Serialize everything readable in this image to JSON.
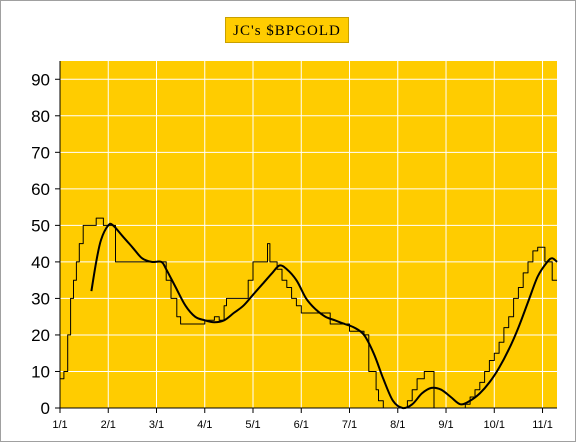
{
  "chart_data": {
    "type": "line",
    "title": "JC's $BPGOLD",
    "xlabel": "",
    "ylabel": "",
    "ylim": [
      0,
      95
    ],
    "yticks": [
      0,
      10,
      20,
      30,
      40,
      50,
      60,
      70,
      80,
      90
    ],
    "xlim": [
      0,
      10.3
    ],
    "xticks": [
      {
        "label": "1/1",
        "x": 0
      },
      {
        "label": "2/1",
        "x": 1
      },
      {
        "label": "3/1",
        "x": 2
      },
      {
        "label": "4/1",
        "x": 3
      },
      {
        "label": "5/1",
        "x": 4
      },
      {
        "label": "6/1",
        "x": 5
      },
      {
        "label": "7/1",
        "x": 6
      },
      {
        "label": "8/1",
        "x": 7
      },
      {
        "label": "9/1",
        "x": 8
      },
      {
        "label": "10/1",
        "x": 9
      },
      {
        "label": "11/1",
        "x": 10
      }
    ],
    "grid": true,
    "background": "#FFCC00",
    "series": [
      {
        "color": "#000000",
        "style": "step",
        "points": [
          [
            0.0,
            8
          ],
          [
            0.08,
            10
          ],
          [
            0.16,
            20
          ],
          [
            0.22,
            30
          ],
          [
            0.28,
            35
          ],
          [
            0.34,
            40
          ],
          [
            0.4,
            45
          ],
          [
            0.48,
            50
          ],
          [
            0.75,
            52
          ],
          [
            0.9,
            50
          ],
          [
            1.0,
            50
          ],
          [
            1.1,
            50
          ],
          [
            1.15,
            40
          ],
          [
            1.5,
            40
          ],
          [
            1.8,
            40
          ],
          [
            2.0,
            40
          ],
          [
            2.1,
            40
          ],
          [
            2.2,
            35
          ],
          [
            2.3,
            30
          ],
          [
            2.42,
            25
          ],
          [
            2.5,
            23
          ],
          [
            2.8,
            23
          ],
          [
            3.0,
            24
          ],
          [
            3.1,
            24
          ],
          [
            3.2,
            25
          ],
          [
            3.3,
            24
          ],
          [
            3.4,
            28
          ],
          [
            3.45,
            30
          ],
          [
            3.7,
            30
          ],
          [
            3.8,
            30
          ],
          [
            3.9,
            35
          ],
          [
            4.0,
            40
          ],
          [
            4.2,
            40
          ],
          [
            4.3,
            45
          ],
          [
            4.35,
            40
          ],
          [
            4.5,
            38
          ],
          [
            4.6,
            35
          ],
          [
            4.7,
            33
          ],
          [
            4.8,
            30
          ],
          [
            4.9,
            28
          ],
          [
            5.0,
            26
          ],
          [
            5.5,
            26
          ],
          [
            5.6,
            23
          ],
          [
            5.8,
            23
          ],
          [
            6.0,
            21
          ],
          [
            6.1,
            21
          ],
          [
            6.3,
            20
          ],
          [
            6.4,
            10
          ],
          [
            6.55,
            5
          ],
          [
            6.6,
            2
          ],
          [
            6.7,
            0
          ],
          [
            7.0,
            0
          ],
          [
            7.1,
            0
          ],
          [
            7.2,
            2
          ],
          [
            7.3,
            5
          ],
          [
            7.4,
            8
          ],
          [
            7.55,
            10
          ],
          [
            7.7,
            10
          ],
          [
            7.75,
            0
          ],
          [
            8.2,
            0
          ],
          [
            8.3,
            0
          ],
          [
            8.4,
            1
          ],
          [
            8.5,
            3
          ],
          [
            8.6,
            5
          ],
          [
            8.7,
            7
          ],
          [
            8.8,
            10
          ],
          [
            8.9,
            13
          ],
          [
            9.0,
            15
          ],
          [
            9.1,
            18
          ],
          [
            9.2,
            22
          ],
          [
            9.3,
            25
          ],
          [
            9.4,
            30
          ],
          [
            9.5,
            33
          ],
          [
            9.6,
            37
          ],
          [
            9.7,
            40
          ],
          [
            9.8,
            43
          ],
          [
            9.9,
            44
          ],
          [
            10.0,
            44
          ],
          [
            10.05,
            40
          ],
          [
            10.15,
            40
          ],
          [
            10.2,
            35
          ],
          [
            10.3,
            35
          ]
        ]
      },
      {
        "color": "#000000",
        "style": "smooth",
        "points": [
          [
            0.65,
            32
          ],
          [
            0.75,
            40
          ],
          [
            0.85,
            46
          ],
          [
            1.0,
            50
          ],
          [
            1.1,
            50
          ],
          [
            1.3,
            47
          ],
          [
            1.5,
            44
          ],
          [
            1.7,
            41
          ],
          [
            1.9,
            40
          ],
          [
            2.1,
            40
          ],
          [
            2.2,
            38
          ],
          [
            2.4,
            33
          ],
          [
            2.6,
            28
          ],
          [
            2.8,
            25
          ],
          [
            3.0,
            24
          ],
          [
            3.2,
            23.5
          ],
          [
            3.4,
            24
          ],
          [
            3.6,
            26
          ],
          [
            3.8,
            28
          ],
          [
            4.0,
            31
          ],
          [
            4.2,
            34
          ],
          [
            4.4,
            37
          ],
          [
            4.55,
            39
          ],
          [
            4.7,
            38
          ],
          [
            4.9,
            35
          ],
          [
            5.1,
            30
          ],
          [
            5.3,
            27
          ],
          [
            5.5,
            25
          ],
          [
            5.7,
            24
          ],
          [
            5.9,
            23
          ],
          [
            6.1,
            22
          ],
          [
            6.3,
            20
          ],
          [
            6.5,
            15
          ],
          [
            6.7,
            8
          ],
          [
            6.9,
            2
          ],
          [
            7.1,
            0
          ],
          [
            7.3,
            1
          ],
          [
            7.5,
            4
          ],
          [
            7.7,
            5.5
          ],
          [
            7.9,
            5
          ],
          [
            8.1,
            3
          ],
          [
            8.3,
            1
          ],
          [
            8.5,
            2
          ],
          [
            8.7,
            4
          ],
          [
            8.9,
            7
          ],
          [
            9.1,
            11
          ],
          [
            9.3,
            16
          ],
          [
            9.5,
            22
          ],
          [
            9.7,
            29
          ],
          [
            9.9,
            36
          ],
          [
            10.1,
            40
          ],
          [
            10.2,
            41
          ],
          [
            10.3,
            40
          ]
        ]
      }
    ]
  }
}
